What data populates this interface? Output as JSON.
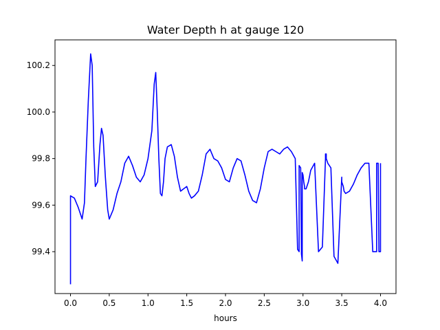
{
  "chart_data": {
    "type": "line",
    "title": "Water Depth h at gauge 120",
    "xlabel": "hours",
    "ylabel": "",
    "xlim": [
      -0.2,
      4.2
    ],
    "ylim": [
      99.22,
      100.31
    ],
    "xticks": [
      0.0,
      0.5,
      1.0,
      1.5,
      2.0,
      2.5,
      3.0,
      3.5,
      4.0
    ],
    "xtick_labels": [
      "0.0",
      "0.5",
      "1.0",
      "1.5",
      "2.0",
      "2.5",
      "3.0",
      "3.5",
      "4.0"
    ],
    "yticks": [
      99.4,
      99.6,
      99.8,
      100.0,
      100.2
    ],
    "ytick_labels": [
      "99.4",
      "99.6",
      "99.8",
      "100.0",
      "100.2"
    ],
    "grid": false,
    "series": [
      {
        "color": "#0000ff",
        "x": [
          0.0,
          0.0,
          0.05,
          0.1,
          0.15,
          0.18,
          0.2,
          0.23,
          0.26,
          0.28,
          0.3,
          0.32,
          0.35,
          0.38,
          0.4,
          0.42,
          0.45,
          0.48,
          0.5,
          0.55,
          0.6,
          0.65,
          0.7,
          0.75,
          0.8,
          0.85,
          0.9,
          0.95,
          1.0,
          1.05,
          1.08,
          1.1,
          1.12,
          1.14,
          1.16,
          1.18,
          1.2,
          1.22,
          1.25,
          1.3,
          1.34,
          1.38,
          1.42,
          1.46,
          1.5,
          1.53,
          1.56,
          1.6,
          1.65,
          1.7,
          1.75,
          1.8,
          1.85,
          1.9,
          1.95,
          2.0,
          2.05,
          2.1,
          2.15,
          2.2,
          2.25,
          2.3,
          2.35,
          2.4,
          2.45,
          2.5,
          2.55,
          2.6,
          2.65,
          2.7,
          2.75,
          2.8,
          2.85,
          2.9,
          2.93,
          2.95,
          2.95,
          2.97,
          2.98,
          2.99,
          2.99,
          3.0,
          3.01,
          3.02,
          3.02,
          3.04,
          3.07,
          3.1,
          3.15,
          3.2,
          3.25,
          3.29,
          3.29,
          3.3,
          3.3,
          3.32,
          3.36,
          3.4,
          3.45,
          3.5,
          3.5,
          3.52,
          3.53,
          3.55,
          3.6,
          3.65,
          3.7,
          3.75,
          3.8,
          3.85,
          3.9,
          3.93,
          3.95,
          3.95,
          3.97,
          3.98,
          4.0,
          4.0
        ],
        "y": [
          99.26,
          99.64,
          99.63,
          99.59,
          99.54,
          99.61,
          99.8,
          100.05,
          100.25,
          100.2,
          99.85,
          99.68,
          99.7,
          99.86,
          99.93,
          99.9,
          99.72,
          99.58,
          99.54,
          99.58,
          99.65,
          99.7,
          99.78,
          99.81,
          99.77,
          99.72,
          99.7,
          99.73,
          99.8,
          99.92,
          100.12,
          100.17,
          100.0,
          99.8,
          99.65,
          99.64,
          99.7,
          99.8,
          99.85,
          99.86,
          99.81,
          99.72,
          99.66,
          99.67,
          99.68,
          99.65,
          99.63,
          99.64,
          99.66,
          99.73,
          99.82,
          99.84,
          99.8,
          99.79,
          99.76,
          99.71,
          99.7,
          99.76,
          99.8,
          99.79,
          99.73,
          99.66,
          99.62,
          99.61,
          99.67,
          99.76,
          99.83,
          99.84,
          99.83,
          99.82,
          99.84,
          99.85,
          99.83,
          99.8,
          99.41,
          99.4,
          99.77,
          99.76,
          99.39,
          99.36,
          99.74,
          99.73,
          99.7,
          99.68,
          99.67,
          99.67,
          99.7,
          99.75,
          99.78,
          99.4,
          99.42,
          99.8,
          99.82,
          99.82,
          99.8,
          99.78,
          99.76,
          99.38,
          99.35,
          99.72,
          99.7,
          99.68,
          99.66,
          99.65,
          99.66,
          99.69,
          99.73,
          99.76,
          99.78,
          99.78,
          99.4,
          99.4,
          99.4,
          99.78,
          99.78,
          99.4,
          99.4,
          99.78
        ]
      }
    ]
  }
}
